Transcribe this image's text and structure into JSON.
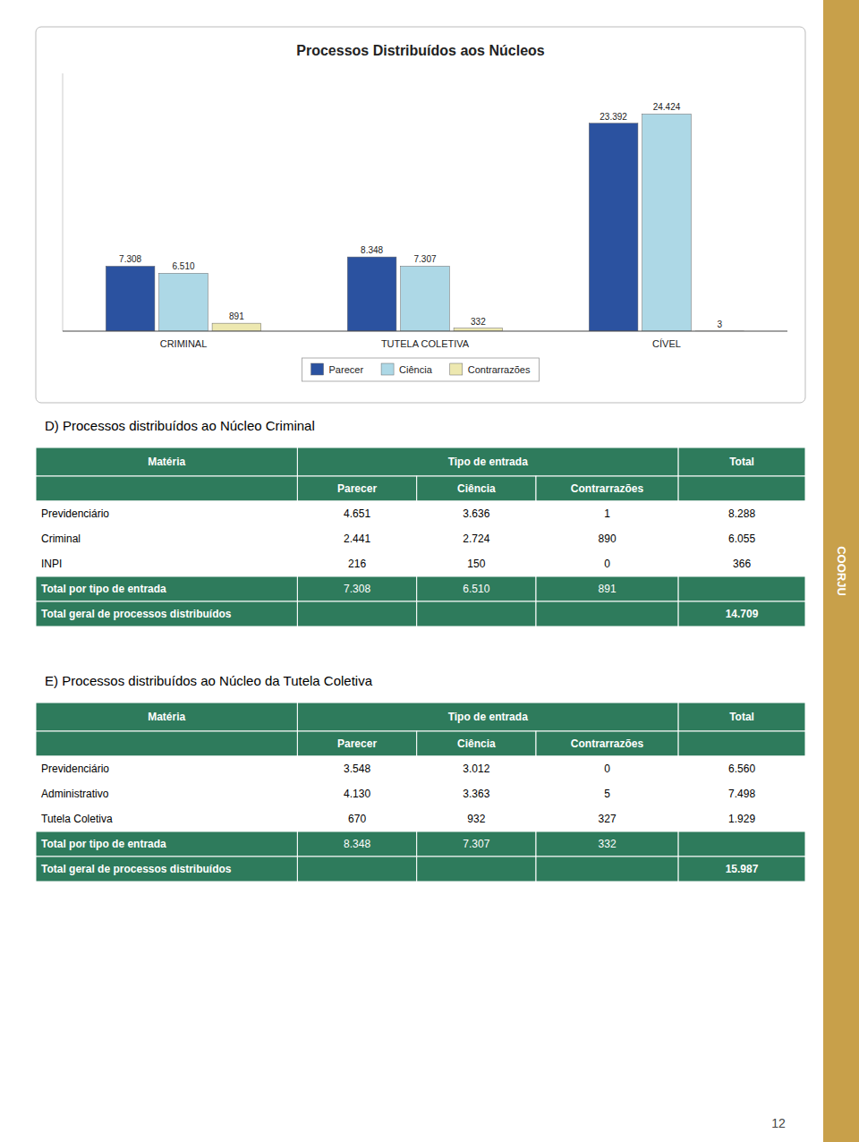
{
  "chart_data": {
    "type": "bar",
    "title": "Processos Distribuídos aos Núcleos",
    "categories": [
      "CRIMINAL",
      "TUTELA COLETIVA",
      "CÍVEL"
    ],
    "series": [
      {
        "name": "Parecer",
        "color": "#2B52A0",
        "values": [
          7308,
          8348,
          23392
        ],
        "value_labels": [
          "7.308",
          "8.348",
          "23.392"
        ]
      },
      {
        "name": "Ciência",
        "color": "#ADD8E6",
        "values": [
          6510,
          7307,
          24424
        ],
        "value_labels": [
          "6.510",
          "7.307",
          "24.424"
        ]
      },
      {
        "name": "Contrarrazões",
        "color": "#EDE8B0",
        "values": [
          891,
          332,
          3
        ],
        "value_labels": [
          "891",
          "332",
          "3"
        ]
      }
    ],
    "ylim": [
      0,
      29000
    ],
    "grid": false,
    "legend": "bottom",
    "data_labels": true,
    "tick_labels": "x"
  },
  "tables": [
    {
      "title": "D) Processos distribuídos ao Núcleo Criminal",
      "color": "#2E7B5C",
      "text_color": "#FFFFFF",
      "header": [
        "Matéria",
        "Tipo de entrada",
        "Total"
      ],
      "subheader": [
        "Parecer",
        "Ciência",
        "Contrarrazões"
      ],
      "rows": [
        [
          "Previdenciário",
          "4.651",
          "3.636",
          "1",
          "8.288"
        ],
        [
          "Criminal",
          "2.441",
          "2.724",
          "890",
          "6.055"
        ],
        [
          "INPI",
          "216",
          "150",
          "0",
          "366"
        ]
      ],
      "total_tipo": {
        "label": "Total por tipo de entrada",
        "values": [
          "7.308",
          "6.510",
          "891"
        ]
      },
      "total_geral": {
        "label": "Total geral de processos distribuídos",
        "value": "14.709"
      }
    },
    {
      "title": "E) Processos distribuídos ao Núcleo da Tutela Coletiva",
      "color": "#2E7B5C",
      "text_color": "#FFFFFF",
      "header": [
        "Matéria",
        "Tipo de entrada",
        "Total"
      ],
      "subheader": [
        "Parecer",
        "Ciência",
        "Contrarrazões"
      ],
      "rows": [
        [
          "Previdenciário",
          "3.548",
          "3.012",
          "0",
          "6.560"
        ],
        [
          "Administrativo",
          "4.130",
          "3.363",
          "5",
          "7.498"
        ],
        [
          "Tutela Coletiva",
          "670",
          "932",
          "327",
          "1.929"
        ]
      ],
      "total_tipo": {
        "label": "Total por tipo de entrada",
        "values": [
          "8.348",
          "7.307",
          "332"
        ]
      },
      "total_geral": {
        "label": "Total geral de processos distribuídos",
        "value": "15.987"
      }
    }
  ],
  "sidebar": {
    "text": "COORJU",
    "color": "#C8A04A"
  },
  "page_number": "12"
}
